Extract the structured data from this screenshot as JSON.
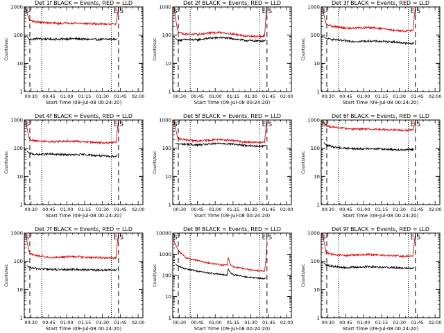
{
  "figure": {
    "series_colors": {
      "events": "#000000",
      "lld": "#dd0000"
    },
    "marker_labels": {
      "start": "S",
      "end": "E",
      "end_start": "E|S"
    }
  },
  "chart_data": [
    {
      "type": "line",
      "title": "Det 1f BLACK = Events, RED = LLD",
      "xlabel": "Start Time (09-Jul-08 00:24:20)",
      "ylabel": "Counts/sec",
      "yscale": "log",
      "ylim": [
        1,
        1000
      ],
      "yticks": [
        "1",
        "10",
        "100",
        "1000"
      ],
      "xlim": [
        "00:24:20",
        "02:04:00"
      ],
      "xticks": [
        "00:30",
        "00:45",
        "01:00",
        "01:15",
        "01:30",
        "01:45",
        "02:00"
      ],
      "dashed_markers": [
        "00:29:00",
        "01:43:30"
      ],
      "dotted_markers": [
        "00:39:00",
        "01:37:30"
      ],
      "grid": false,
      "legend": "none",
      "series": [
        {
          "name": "Events",
          "color": "#000000",
          "x": [
            "00:26:30",
            "00:28:30",
            "00:35:00",
            "00:45:00",
            "00:55:00",
            "01:05:00",
            "01:15:00",
            "01:25:00",
            "01:35:00",
            "01:41:30",
            "01:42:30"
          ],
          "values": [
            90,
            70,
            75,
            72,
            72,
            75,
            72,
            70,
            72,
            72,
            75
          ]
        },
        {
          "name": "LLD",
          "color": "#dd0000",
          "x": [
            "00:25:40",
            "00:26:40",
            "00:28:30",
            "00:33:00",
            "00:45:00",
            "00:55:00",
            "01:05:00",
            "01:15:00",
            "01:25:00",
            "01:35:00",
            "01:41:30",
            "01:42:30",
            "01:43:30"
          ],
          "values": [
            1000,
            600,
            350,
            300,
            270,
            260,
            270,
            260,
            250,
            250,
            255,
            500,
            1000
          ]
        }
      ]
    },
    {
      "type": "line",
      "title": "Det 2f BLACK = Events, RED = LLD",
      "xlabel": "Start Time (09-Jul-08 00:24:20)",
      "ylabel": "Counts/sec",
      "yscale": "log",
      "ylim": [
        1,
        1000
      ],
      "yticks": [
        "1",
        "10",
        "100",
        "1000"
      ],
      "xlim": [
        "00:24:20",
        "02:04:00"
      ],
      "xticks": [
        "00:30",
        "00:45",
        "01:00",
        "01:15",
        "01:30",
        "01:45",
        "02:00"
      ],
      "dashed_markers": [
        "00:29:00",
        "01:43:30"
      ],
      "dotted_markers": [
        "00:39:00",
        "01:37:30"
      ],
      "grid": false,
      "legend": "none",
      "series": [
        {
          "name": "Events",
          "color": "#000000",
          "x": [
            "00:26:30",
            "00:28:30",
            "00:35:00",
            "00:45:00",
            "00:55:00",
            "01:05:00",
            "01:15:00",
            "01:25:00",
            "01:35:00",
            "01:41:30",
            "01:42:30"
          ],
          "values": [
            80,
            65,
            70,
            68,
            78,
            82,
            75,
            65,
            62,
            63,
            70
          ]
        },
        {
          "name": "LLD",
          "color": "#dd0000",
          "x": [
            "00:25:40",
            "00:26:40",
            "00:28:30",
            "00:33:00",
            "00:45:00",
            "00:55:00",
            "01:05:00",
            "01:15:00",
            "01:25:00",
            "01:35:00",
            "01:41:30",
            "01:42:30",
            "01:43:30"
          ],
          "values": [
            1000,
            400,
            140,
            110,
            105,
            120,
            125,
            110,
            95,
            90,
            92,
            400,
            1000
          ]
        }
      ]
    },
    {
      "type": "line",
      "title": "Det 3f BLACK = Events, RED = LLD",
      "xlabel": "Start Time (09-Jul-08 00:24:20)",
      "ylabel": "Counts/sec",
      "yscale": "log",
      "ylim": [
        1,
        1000
      ],
      "yticks": [
        "1",
        "10",
        "100",
        "1000"
      ],
      "xlim": [
        "00:24:20",
        "02:04:00"
      ],
      "xticks": [
        "00:30",
        "00:45",
        "01:00",
        "01:15",
        "01:30",
        "01:45",
        "02:00"
      ],
      "dashed_markers": [
        "00:29:00",
        "01:43:30"
      ],
      "dotted_markers": [
        "00:39:00",
        "01:37:30"
      ],
      "grid": false,
      "legend": "none",
      "series": [
        {
          "name": "Events",
          "color": "#000000",
          "x": [
            "00:26:30",
            "00:28:30",
            "00:35:00",
            "00:45:00",
            "00:55:00",
            "01:05:00",
            "01:15:00",
            "01:25:00",
            "01:35:00",
            "01:41:30",
            "01:42:30"
          ],
          "values": [
            90,
            75,
            70,
            62,
            60,
            62,
            60,
            58,
            52,
            50,
            55
          ]
        },
        {
          "name": "LLD",
          "color": "#dd0000",
          "x": [
            "00:25:40",
            "00:26:40",
            "00:28:30",
            "00:33:00",
            "00:45:00",
            "00:55:00",
            "01:05:00",
            "01:15:00",
            "01:25:00",
            "01:35:00",
            "01:41:30",
            "01:42:30",
            "01:43:30"
          ],
          "values": [
            1000,
            500,
            240,
            210,
            175,
            180,
            185,
            170,
            150,
            140,
            145,
            450,
            1000
          ]
        }
      ]
    },
    {
      "type": "line",
      "title": "Det 4f BLACK = Events, RED = LLD",
      "xlabel": "Start Time (09-Jul-08 00:24:20)",
      "ylabel": "Counts/sec",
      "yscale": "log",
      "ylim": [
        1,
        1000
      ],
      "yticks": [
        "1",
        "10",
        "100",
        "1000"
      ],
      "xlim": [
        "00:24:20",
        "02:04:00"
      ],
      "xticks": [
        "00:30",
        "00:45",
        "01:00",
        "01:15",
        "01:30",
        "01:45",
        "02:00"
      ],
      "dashed_markers": [
        "00:29:00",
        "01:43:30"
      ],
      "dotted_markers": [
        "00:39:00",
        "01:37:30"
      ],
      "grid": false,
      "legend": "none",
      "series": [
        {
          "name": "Events",
          "color": "#000000",
          "x": [
            "00:26:30",
            "00:28:30",
            "00:35:00",
            "00:45:00",
            "00:55:00",
            "01:05:00",
            "01:15:00",
            "01:25:00",
            "01:35:00",
            "01:41:30",
            "01:42:30"
          ],
          "values": [
            80,
            65,
            60,
            62,
            60,
            58,
            60,
            55,
            52,
            52,
            60
          ]
        },
        {
          "name": "LLD",
          "color": "#dd0000",
          "x": [
            "00:25:40",
            "00:26:40",
            "00:28:30",
            "00:33:00",
            "00:45:00",
            "00:55:00",
            "01:05:00",
            "01:15:00",
            "01:25:00",
            "01:35:00",
            "01:41:30",
            "01:42:30",
            "01:43:30"
          ],
          "values": [
            1000,
            500,
            220,
            180,
            170,
            175,
            180,
            170,
            160,
            155,
            160,
            450,
            1000
          ]
        }
      ]
    },
    {
      "type": "line",
      "title": "Det 5f BLACK = Events, RED = LLD",
      "xlabel": "Start Time (09-Jul-08 00:24:20)",
      "ylabel": "Counts/sec",
      "yscale": "log",
      "ylim": [
        1,
        1000
      ],
      "yticks": [
        "1",
        "10",
        "100",
        "1000"
      ],
      "xlim": [
        "00:24:20",
        "02:04:00"
      ],
      "xticks": [
        "00:30",
        "00:45",
        "01:00",
        "01:15",
        "01:30",
        "01:45",
        "02:00"
      ],
      "dashed_markers": [
        "00:29:00",
        "01:43:30"
      ],
      "dotted_markers": [
        "00:39:00",
        "01:37:30"
      ],
      "grid": false,
      "legend": "none",
      "series": [
        {
          "name": "Events",
          "color": "#000000",
          "x": [
            "00:26:30",
            "00:28:30",
            "00:35:00",
            "00:45:00",
            "00:55:00",
            "01:05:00",
            "01:15:00",
            "01:25:00",
            "01:35:00",
            "01:41:30",
            "01:42:30"
          ],
          "values": [
            150,
            140,
            140,
            130,
            140,
            150,
            140,
            125,
            120,
            120,
            130
          ]
        },
        {
          "name": "LLD",
          "color": "#dd0000",
          "x": [
            "00:25:40",
            "00:26:40",
            "00:28:30",
            "00:33:00",
            "00:45:00",
            "00:55:00",
            "01:05:00",
            "01:15:00",
            "01:25:00",
            "01:35:00",
            "01:41:30",
            "01:42:30",
            "01:43:30"
          ],
          "values": [
            1000,
            500,
            230,
            200,
            180,
            195,
            205,
            185,
            165,
            160,
            165,
            450,
            1000
          ]
        }
      ]
    },
    {
      "type": "line",
      "title": "Det 6f BLACK = Events, RED = LLD",
      "xlabel": "Start Time (09-Jul-08 00:24:20)",
      "ylabel": "Counts/sec",
      "yscale": "log",
      "ylim": [
        1,
        1000
      ],
      "yticks": [
        "1",
        "10",
        "100",
        "1000"
      ],
      "xlim": [
        "00:24:20",
        "02:04:00"
      ],
      "xticks": [
        "00:30",
        "00:45",
        "01:00",
        "01:15",
        "01:30",
        "01:45",
        "02:00"
      ],
      "dashed_markers": [
        "00:29:00",
        "01:43:30"
      ],
      "dotted_markers": [
        "00:39:00",
        "01:37:30"
      ],
      "grid": false,
      "legend": "none",
      "series": [
        {
          "name": "Events",
          "color": "#000000",
          "x": [
            "00:26:30",
            "00:28:30",
            "00:35:00",
            "00:45:00",
            "00:55:00",
            "01:05:00",
            "01:15:00",
            "01:25:00",
            "01:35:00",
            "01:41:30",
            "01:42:30"
          ],
          "values": [
            160,
            130,
            110,
            100,
            95,
            98,
            95,
            90,
            88,
            90,
            95
          ]
        },
        {
          "name": "LLD",
          "color": "#dd0000",
          "x": [
            "00:25:40",
            "00:26:40",
            "00:28:30",
            "00:33:00",
            "00:45:00",
            "00:55:00",
            "01:05:00",
            "01:15:00",
            "01:25:00",
            "01:35:00",
            "01:41:30",
            "01:42:30",
            "01:43:30"
          ],
          "values": [
            1000,
            800,
            650,
            560,
            500,
            480,
            480,
            470,
            450,
            430,
            440,
            650,
            1000
          ]
        }
      ]
    },
    {
      "type": "line",
      "title": "Det 7f BLACK = Events, RED = LLD",
      "xlabel": "Start Time (09-Jul-08 00:24:20)",
      "ylabel": "Counts/sec",
      "yscale": "log",
      "ylim": [
        1,
        1000
      ],
      "yticks": [
        "1",
        "10",
        "100",
        "1000"
      ],
      "xlim": [
        "00:24:20",
        "02:04:00"
      ],
      "xticks": [
        "00:30",
        "00:45",
        "01:00",
        "01:15",
        "01:30",
        "01:45",
        "02:00"
      ],
      "dashed_markers": [
        "00:29:00",
        "01:43:30"
      ],
      "dotted_markers": [
        "00:39:00",
        "01:37:30"
      ],
      "grid": false,
      "legend": "none",
      "series": [
        {
          "name": "Events",
          "color": "#000000",
          "x": [
            "00:26:30",
            "00:28:30",
            "00:35:00",
            "00:45:00",
            "00:55:00",
            "01:05:00",
            "01:15:00",
            "01:25:00",
            "01:35:00",
            "01:41:30",
            "01:42:30"
          ],
          "values": [
            70,
            60,
            55,
            52,
            50,
            52,
            50,
            48,
            50,
            50,
            55
          ]
        },
        {
          "name": "LLD",
          "color": "#dd0000",
          "x": [
            "00:25:40",
            "00:26:40",
            "00:28:30",
            "00:33:00",
            "00:45:00",
            "00:55:00",
            "01:05:00",
            "01:15:00",
            "01:25:00",
            "01:35:00",
            "01:41:30",
            "01:42:30",
            "01:43:30"
          ],
          "values": [
            1000,
            500,
            200,
            160,
            140,
            140,
            150,
            140,
            135,
            130,
            135,
            450,
            1000
          ]
        }
      ]
    },
    {
      "type": "line",
      "title": "Det 8f BLACK = Events, RED = LLD",
      "xlabel": "Start Time (09-Jul-08 00:24:20)",
      "ylabel": "Counts/sec",
      "yscale": "log",
      "ylim": [
        1,
        10000
      ],
      "yticks": [
        "1",
        "10",
        "100",
        "1000",
        "10000"
      ],
      "xlim": [
        "00:24:20",
        "02:04:00"
      ],
      "xticks": [
        "00:30",
        "00:45",
        "01:00",
        "01:15",
        "01:30",
        "01:45",
        "02:00"
      ],
      "dashed_markers": [
        "00:29:00",
        "01:43:30"
      ],
      "dotted_markers": [
        "00:39:00",
        "01:37:30"
      ],
      "grid": false,
      "legend": "none",
      "series": [
        {
          "name": "Events",
          "color": "#000000",
          "x": [
            "00:26:30",
            "00:28:30",
            "00:33:00",
            "00:45:00",
            "00:55:00",
            "01:05:00",
            "01:10:00",
            "01:11:00",
            "01:12:30",
            "01:15:00",
            "01:25:00",
            "01:35:00",
            "01:41:30",
            "01:42:30"
          ],
          "values": [
            350,
            280,
            220,
            160,
            130,
            110,
            100,
            200,
            140,
            110,
            85,
            75,
            70,
            80
          ]
        },
        {
          "name": "LLD",
          "color": "#dd0000",
          "x": [
            "00:25:00",
            "00:27:00",
            "00:30:00",
            "00:35:00",
            "00:45:00",
            "00:55:00",
            "01:05:00",
            "01:10:00",
            "01:11:00",
            "01:12:30",
            "01:15:00",
            "01:25:00",
            "01:35:00",
            "01:41:30",
            "01:42:30",
            "01:43:30"
          ],
          "values": [
            5000,
            2500,
            1300,
            700,
            500,
            380,
            320,
            300,
            700,
            350,
            260,
            200,
            170,
            160,
            500,
            4000
          ]
        }
      ]
    },
    {
      "type": "line",
      "title": "Det 9f BLACK = Events, RED = LLD",
      "xlabel": "Start Time (09-Jul-08 00:24:20)",
      "ylabel": "Counts/sec",
      "yscale": "log",
      "ylim": [
        1,
        1000
      ],
      "yticks": [
        "1",
        "10",
        "100",
        "1000"
      ],
      "xlim": [
        "00:24:20",
        "02:04:00"
      ],
      "xticks": [
        "00:30",
        "00:45",
        "01:00",
        "01:15",
        "01:30",
        "01:45",
        "02:00"
      ],
      "dashed_markers": [
        "00:29:00",
        "01:43:30"
      ],
      "dotted_markers": [
        "00:39:00",
        "01:37:30"
      ],
      "grid": false,
      "legend": "none",
      "series": [
        {
          "name": "Events",
          "color": "#000000",
          "x": [
            "00:26:30",
            "00:28:30",
            "00:35:00",
            "00:45:00",
            "00:55:00",
            "01:05:00",
            "01:15:00",
            "01:25:00",
            "01:35:00",
            "01:41:30",
            "01:42:30"
          ],
          "values": [
            90,
            75,
            65,
            60,
            62,
            65,
            62,
            60,
            58,
            58,
            62
          ]
        },
        {
          "name": "LLD",
          "color": "#dd0000",
          "x": [
            "00:25:40",
            "00:26:40",
            "00:28:30",
            "00:33:00",
            "00:45:00",
            "00:55:00",
            "01:05:00",
            "01:15:00",
            "01:25:00",
            "01:35:00",
            "01:41:30",
            "01:42:30",
            "01:43:30"
          ],
          "values": [
            1000,
            500,
            210,
            180,
            160,
            170,
            175,
            165,
            155,
            150,
            155,
            450,
            1000
          ]
        }
      ]
    }
  ]
}
